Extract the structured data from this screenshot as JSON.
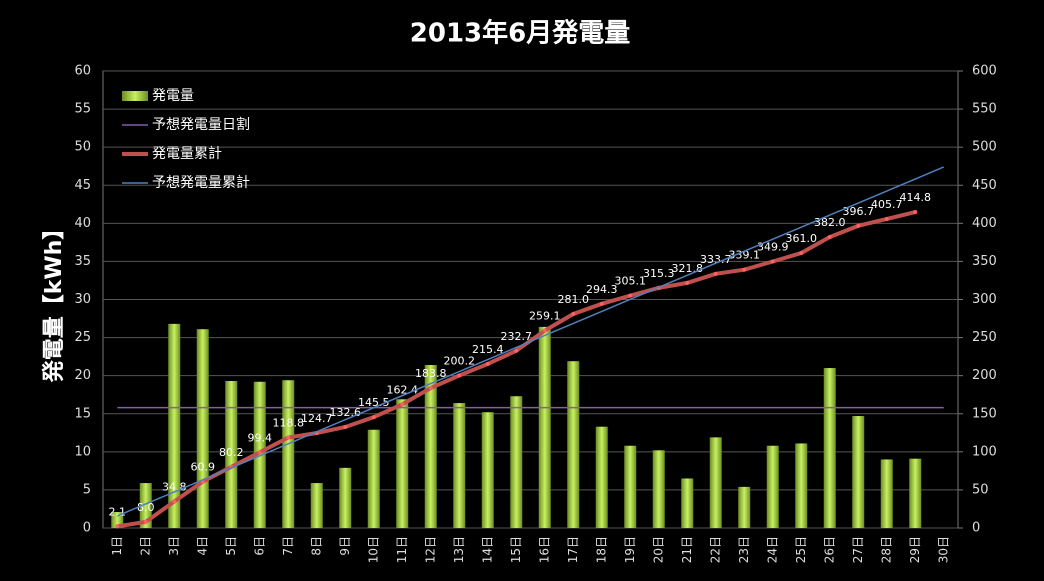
{
  "chart_data": {
    "type": "combo",
    "title": "2013年6月発電量",
    "y_label": "発電量【kWh】",
    "categories": [
      "1日",
      "2日",
      "3日",
      "4日",
      "5日",
      "6日",
      "7日",
      "8日",
      "9日",
      "10日",
      "11日",
      "12日",
      "13日",
      "14日",
      "15日",
      "16日",
      "17日",
      "18日",
      "19日",
      "20日",
      "21日",
      "22日",
      "23日",
      "24日",
      "25日",
      "26日",
      "27日",
      "28日",
      "29日",
      "30日"
    ],
    "ylim": [
      0,
      60
    ],
    "yticks": [
      0,
      5,
      10,
      15,
      20,
      25,
      30,
      35,
      40,
      45,
      50,
      55,
      60
    ],
    "y2lim": [
      0,
      600
    ],
    "y2ticks": [
      0,
      50,
      100,
      150,
      200,
      250,
      300,
      350,
      400,
      450,
      500,
      550,
      600
    ],
    "grid": true,
    "legend": "upper-left",
    "series": [
      {
        "name": "発電量",
        "type": "bar",
        "color": "#9acd32",
        "values": [
          2.1,
          5.9,
          26.8,
          26.1,
          19.3,
          19.2,
          19.4,
          5.9,
          7.9,
          12.9,
          16.9,
          21.4,
          16.4,
          15.2,
          17.3,
          26.4,
          21.9,
          13.3,
          10.8,
          10.2,
          6.5,
          11.9,
          5.4,
          10.8,
          11.1,
          21.0,
          14.7,
          9.0,
          9.1,
          null
        ]
      },
      {
        "name": "予想発電量日割",
        "type": "line",
        "color": "#8060a8",
        "values": [
          15.8,
          15.8,
          15.8,
          15.8,
          15.8,
          15.8,
          15.8,
          15.8,
          15.8,
          15.8,
          15.8,
          15.8,
          15.8,
          15.8,
          15.8,
          15.8,
          15.8,
          15.8,
          15.8,
          15.8,
          15.8,
          15.8,
          15.8,
          15.8,
          15.8,
          15.8,
          15.8,
          15.8,
          15.8,
          15.8
        ]
      },
      {
        "name": "発電量累計",
        "type": "line",
        "axis": "y2",
        "color": "#c0504d",
        "markers": true,
        "values": [
          2.1,
          8.0,
          34.8,
          60.9,
          80.2,
          99.4,
          118.8,
          124.7,
          132.6,
          145.5,
          162.4,
          183.8,
          200.2,
          215.4,
          232.7,
          259.1,
          281.0,
          294.3,
          305.1,
          315.3,
          321.8,
          333.7,
          339.1,
          349.9,
          361.0,
          382.0,
          396.7,
          405.7,
          414.8,
          null
        ],
        "value_labels": [
          "2.1",
          "8.0",
          "34.8",
          "60.9",
          "80.2",
          "99.4",
          "118.8",
          "124.7",
          "132.6",
          "145.5",
          "162.4",
          "183.8",
          "200.2",
          "215.4",
          "232.7",
          "259.1",
          "281.0",
          "294.3",
          "305.1",
          "315.3",
          "321.8",
          "333.7",
          "339.1",
          "349.9",
          "361.0",
          "382.0",
          "396.7",
          "405.7",
          "414.8",
          null
        ]
      },
      {
        "name": "予想発電量累計",
        "type": "line",
        "axis": "y2",
        "color": "#4f81bd",
        "values": [
          15.8,
          31.6,
          47.4,
          63.2,
          79,
          94.8,
          110.6,
          126.4,
          142.2,
          158,
          173.8,
          189.6,
          205.4,
          221.2,
          237,
          252.8,
          268.6,
          284.4,
          300.2,
          316,
          331.8,
          347.6,
          363.4,
          379.2,
          395,
          410.8,
          426.6,
          442.4,
          458.2,
          474
        ]
      }
    ]
  }
}
